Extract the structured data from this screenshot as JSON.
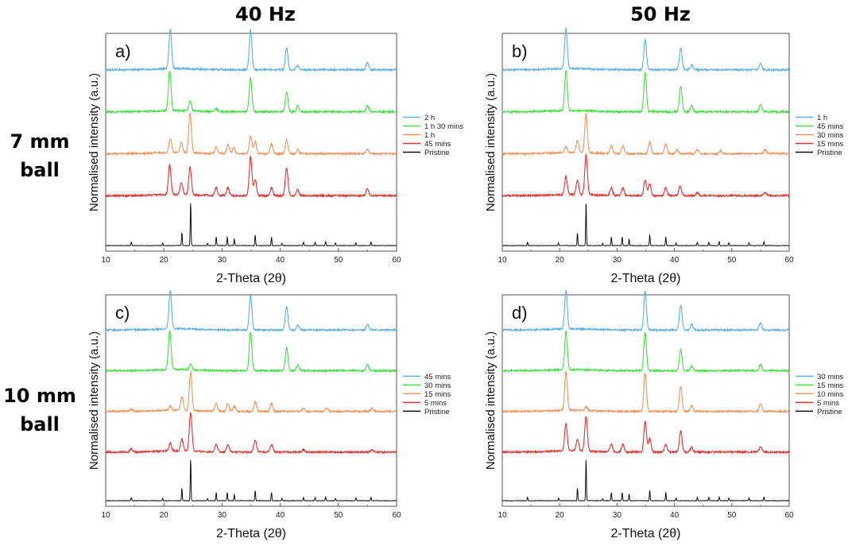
{
  "column_headers": [
    "40 Hz",
    "50 Hz"
  ],
  "row_headers": [
    {
      "line1": "7 mm",
      "line2": "ball"
    },
    {
      "line1": "10 mm",
      "line2": "ball"
    }
  ],
  "colors": {
    "series": [
      "#5aaff0",
      "#3ee23e",
      "#f79259",
      "#ef2b2b",
      "#111111"
    ]
  },
  "chart_data": [
    {
      "type": "line",
      "panel_label": "a)",
      "xlabel": "2-Theta (2θ)",
      "ylabel": "Normalised intensity (a.u.)",
      "xlim": [
        10,
        60
      ],
      "xticks": [
        10,
        20,
        30,
        40,
        50,
        60
      ],
      "grid": false,
      "legend_position": "right",
      "series": [
        {
          "name": "2 h",
          "peaks": [
            [
              21.1,
              1.0
            ],
            [
              34.9,
              1.0
            ],
            [
              41.1,
              0.55
            ],
            [
              43.0,
              0.1
            ],
            [
              55.0,
              0.18
            ]
          ]
        },
        {
          "name": "1 h 30 mins",
          "peaks": [
            [
              21.0,
              1.0
            ],
            [
              24.5,
              0.25
            ],
            [
              29.0,
              0.08
            ],
            [
              34.9,
              0.85
            ],
            [
              41.1,
              0.5
            ],
            [
              43.0,
              0.15
            ],
            [
              55.0,
              0.15
            ]
          ]
        },
        {
          "name": "1 h",
          "peaks": [
            [
              21.1,
              0.35
            ],
            [
              23.0,
              0.25
            ],
            [
              24.5,
              1.0
            ],
            [
              29.0,
              0.18
            ],
            [
              31.0,
              0.22
            ],
            [
              32.0,
              0.15
            ],
            [
              34.9,
              0.45
            ],
            [
              35.7,
              0.3
            ],
            [
              38.5,
              0.25
            ],
            [
              41.1,
              0.35
            ],
            [
              43.0,
              0.1
            ],
            [
              55.0,
              0.1
            ]
          ]
        },
        {
          "name": "45 mins",
          "peaks": [
            [
              21.0,
              0.75
            ],
            [
              23.0,
              0.3
            ],
            [
              24.5,
              0.7
            ],
            [
              29.0,
              0.2
            ],
            [
              31.0,
              0.2
            ],
            [
              34.9,
              1.0
            ],
            [
              35.7,
              0.4
            ],
            [
              38.5,
              0.2
            ],
            [
              41.1,
              0.7
            ],
            [
              43.0,
              0.15
            ],
            [
              55.0,
              0.18
            ]
          ]
        },
        {
          "name": "Pristine",
          "peaks": [
            [
              14.4,
              0.08
            ],
            [
              19.8,
              0.06
            ],
            [
              23.1,
              0.3
            ],
            [
              24.6,
              1.0
            ],
            [
              27.5,
              0.05
            ],
            [
              29.0,
              0.2
            ],
            [
              30.9,
              0.2
            ],
            [
              32.1,
              0.15
            ],
            [
              35.7,
              0.25
            ],
            [
              38.5,
              0.2
            ],
            [
              40.3,
              0.06
            ],
            [
              44.0,
              0.08
            ],
            [
              46.0,
              0.08
            ],
            [
              47.8,
              0.1
            ],
            [
              49.5,
              0.06
            ],
            [
              53.0,
              0.07
            ],
            [
              55.6,
              0.09
            ]
          ]
        }
      ]
    },
    {
      "type": "line",
      "panel_label": "b)",
      "xlabel": "2-Theta (2θ)",
      "ylabel": "Normalised intensity (a.u.)",
      "xlim": [
        10,
        60
      ],
      "xticks": [
        10,
        20,
        30,
        40,
        50,
        60
      ],
      "grid": false,
      "legend_position": "right",
      "series": [
        {
          "name": "1 h",
          "peaks": [
            [
              21.1,
              1.0
            ],
            [
              34.9,
              0.75
            ],
            [
              41.1,
              0.55
            ],
            [
              43.0,
              0.12
            ],
            [
              55.0,
              0.15
            ]
          ]
        },
        {
          "name": "45 mins",
          "peaks": [
            [
              21.1,
              1.0
            ],
            [
              34.9,
              1.0
            ],
            [
              41.1,
              0.65
            ],
            [
              43.0,
              0.15
            ],
            [
              55.0,
              0.2
            ]
          ]
        },
        {
          "name": "30 mins",
          "peaks": [
            [
              21.1,
              0.15
            ],
            [
              23.1,
              0.3
            ],
            [
              24.6,
              1.0
            ],
            [
              29.0,
              0.2
            ],
            [
              31.0,
              0.2
            ],
            [
              35.7,
              0.3
            ],
            [
              38.5,
              0.25
            ],
            [
              40.5,
              0.1
            ],
            [
              44.0,
              0.1
            ],
            [
              48.0,
              0.08
            ],
            [
              55.8,
              0.1
            ]
          ]
        },
        {
          "name": "15 mins",
          "peaks": [
            [
              21.1,
              0.45
            ],
            [
              23.1,
              0.35
            ],
            [
              24.6,
              1.0
            ],
            [
              29.0,
              0.2
            ],
            [
              31.0,
              0.2
            ],
            [
              34.9,
              0.4
            ],
            [
              35.7,
              0.3
            ],
            [
              38.5,
              0.2
            ],
            [
              41.0,
              0.25
            ],
            [
              44.0,
              0.08
            ],
            [
              55.8,
              0.08
            ]
          ]
        },
        {
          "name": "Pristine",
          "peaks": [
            [
              14.4,
              0.08
            ],
            [
              19.8,
              0.06
            ],
            [
              23.1,
              0.3
            ],
            [
              24.6,
              1.0
            ],
            [
              27.5,
              0.05
            ],
            [
              29.0,
              0.2
            ],
            [
              30.9,
              0.2
            ],
            [
              32.1,
              0.15
            ],
            [
              35.7,
              0.25
            ],
            [
              38.5,
              0.2
            ],
            [
              40.3,
              0.06
            ],
            [
              44.0,
              0.08
            ],
            [
              46.0,
              0.08
            ],
            [
              47.8,
              0.1
            ],
            [
              49.5,
              0.06
            ],
            [
              53.0,
              0.07
            ],
            [
              55.6,
              0.09
            ]
          ]
        }
      ]
    },
    {
      "type": "line",
      "panel_label": "c)",
      "xlabel": "2-Theta (2θ)",
      "ylabel": "Normalised intensity (a.u.)",
      "xlim": [
        10,
        60
      ],
      "xticks": [
        10,
        20,
        30,
        40,
        50,
        60
      ],
      "grid": false,
      "legend_position": "right",
      "series": [
        {
          "name": "45 mins",
          "peaks": [
            [
              21.1,
              1.0
            ],
            [
              34.9,
              0.9
            ],
            [
              41.1,
              0.6
            ],
            [
              43.0,
              0.12
            ],
            [
              55.0,
              0.15
            ]
          ]
        },
        {
          "name": "30 mins",
          "peaks": [
            [
              21.0,
              1.0
            ],
            [
              24.6,
              0.15
            ],
            [
              34.9,
              1.0
            ],
            [
              41.1,
              0.6
            ],
            [
              43.0,
              0.15
            ],
            [
              55.0,
              0.15
            ]
          ]
        },
        {
          "name": "15 mins",
          "peaks": [
            [
              14.4,
              0.05
            ],
            [
              21.1,
              0.1
            ],
            [
              23.1,
              0.35
            ],
            [
              24.6,
              1.0
            ],
            [
              29.0,
              0.2
            ],
            [
              31.0,
              0.2
            ],
            [
              32.1,
              0.12
            ],
            [
              35.7,
              0.25
            ],
            [
              38.5,
              0.2
            ],
            [
              44.0,
              0.08
            ],
            [
              48.0,
              0.08
            ],
            [
              55.8,
              0.08
            ]
          ]
        },
        {
          "name": "5 mins",
          "peaks": [
            [
              14.4,
              0.08
            ],
            [
              21.1,
              0.2
            ],
            [
              23.1,
              0.3
            ],
            [
              24.6,
              1.0
            ],
            [
              29.0,
              0.2
            ],
            [
              31.0,
              0.2
            ],
            [
              35.7,
              0.3
            ],
            [
              38.5,
              0.2
            ],
            [
              44.0,
              0.06
            ],
            [
              55.8,
              0.06
            ]
          ]
        },
        {
          "name": "Pristine",
          "peaks": [
            [
              14.4,
              0.08
            ],
            [
              19.8,
              0.06
            ],
            [
              23.1,
              0.3
            ],
            [
              24.6,
              1.0
            ],
            [
              27.5,
              0.05
            ],
            [
              29.0,
              0.2
            ],
            [
              30.9,
              0.2
            ],
            [
              32.1,
              0.15
            ],
            [
              35.7,
              0.25
            ],
            [
              38.5,
              0.2
            ],
            [
              40.3,
              0.06
            ],
            [
              44.0,
              0.08
            ],
            [
              46.0,
              0.08
            ],
            [
              47.8,
              0.1
            ],
            [
              49.5,
              0.06
            ],
            [
              53.0,
              0.07
            ],
            [
              55.6,
              0.09
            ]
          ]
        }
      ]
    },
    {
      "type": "line",
      "panel_label": "d)",
      "xlabel": "2-Theta (2θ)",
      "ylabel": "Normalised intensity (a.u.)",
      "xlim": [
        10,
        60
      ],
      "xticks": [
        10,
        20,
        30,
        40,
        50,
        60
      ],
      "grid": false,
      "legend_position": "right",
      "series": [
        {
          "name": "30 mins",
          "peaks": [
            [
              21.1,
              1.0
            ],
            [
              34.9,
              1.0
            ],
            [
              41.1,
              0.65
            ],
            [
              43.0,
              0.15
            ],
            [
              55.0,
              0.18
            ]
          ]
        },
        {
          "name": "15 mins",
          "peaks": [
            [
              21.1,
              1.0
            ],
            [
              34.9,
              1.0
            ],
            [
              41.1,
              0.55
            ],
            [
              43.0,
              0.12
            ],
            [
              55.0,
              0.15
            ]
          ]
        },
        {
          "name": "10 mins",
          "peaks": [
            [
              21.1,
              1.0
            ],
            [
              24.6,
              0.1
            ],
            [
              34.9,
              1.0
            ],
            [
              41.1,
              0.65
            ],
            [
              43.0,
              0.15
            ],
            [
              55.0,
              0.2
            ]
          ]
        },
        {
          "name": "5 mins",
          "peaks": [
            [
              21.1,
              0.7
            ],
            [
              23.1,
              0.3
            ],
            [
              24.6,
              0.9
            ],
            [
              29.0,
              0.2
            ],
            [
              31.0,
              0.2
            ],
            [
              34.9,
              0.8
            ],
            [
              35.7,
              0.35
            ],
            [
              38.5,
              0.2
            ],
            [
              41.1,
              0.55
            ],
            [
              43.0,
              0.12
            ],
            [
              55.0,
              0.12
            ]
          ]
        },
        {
          "name": "Pristine",
          "peaks": [
            [
              14.4,
              0.08
            ],
            [
              19.8,
              0.06
            ],
            [
              23.1,
              0.3
            ],
            [
              24.6,
              1.0
            ],
            [
              27.5,
              0.05
            ],
            [
              29.0,
              0.2
            ],
            [
              30.9,
              0.2
            ],
            [
              32.1,
              0.15
            ],
            [
              35.7,
              0.25
            ],
            [
              38.5,
              0.2
            ],
            [
              40.3,
              0.06
            ],
            [
              44.0,
              0.08
            ],
            [
              46.0,
              0.08
            ],
            [
              47.8,
              0.1
            ],
            [
              49.5,
              0.06
            ],
            [
              53.0,
              0.07
            ],
            [
              55.6,
              0.09
            ]
          ]
        }
      ]
    }
  ]
}
